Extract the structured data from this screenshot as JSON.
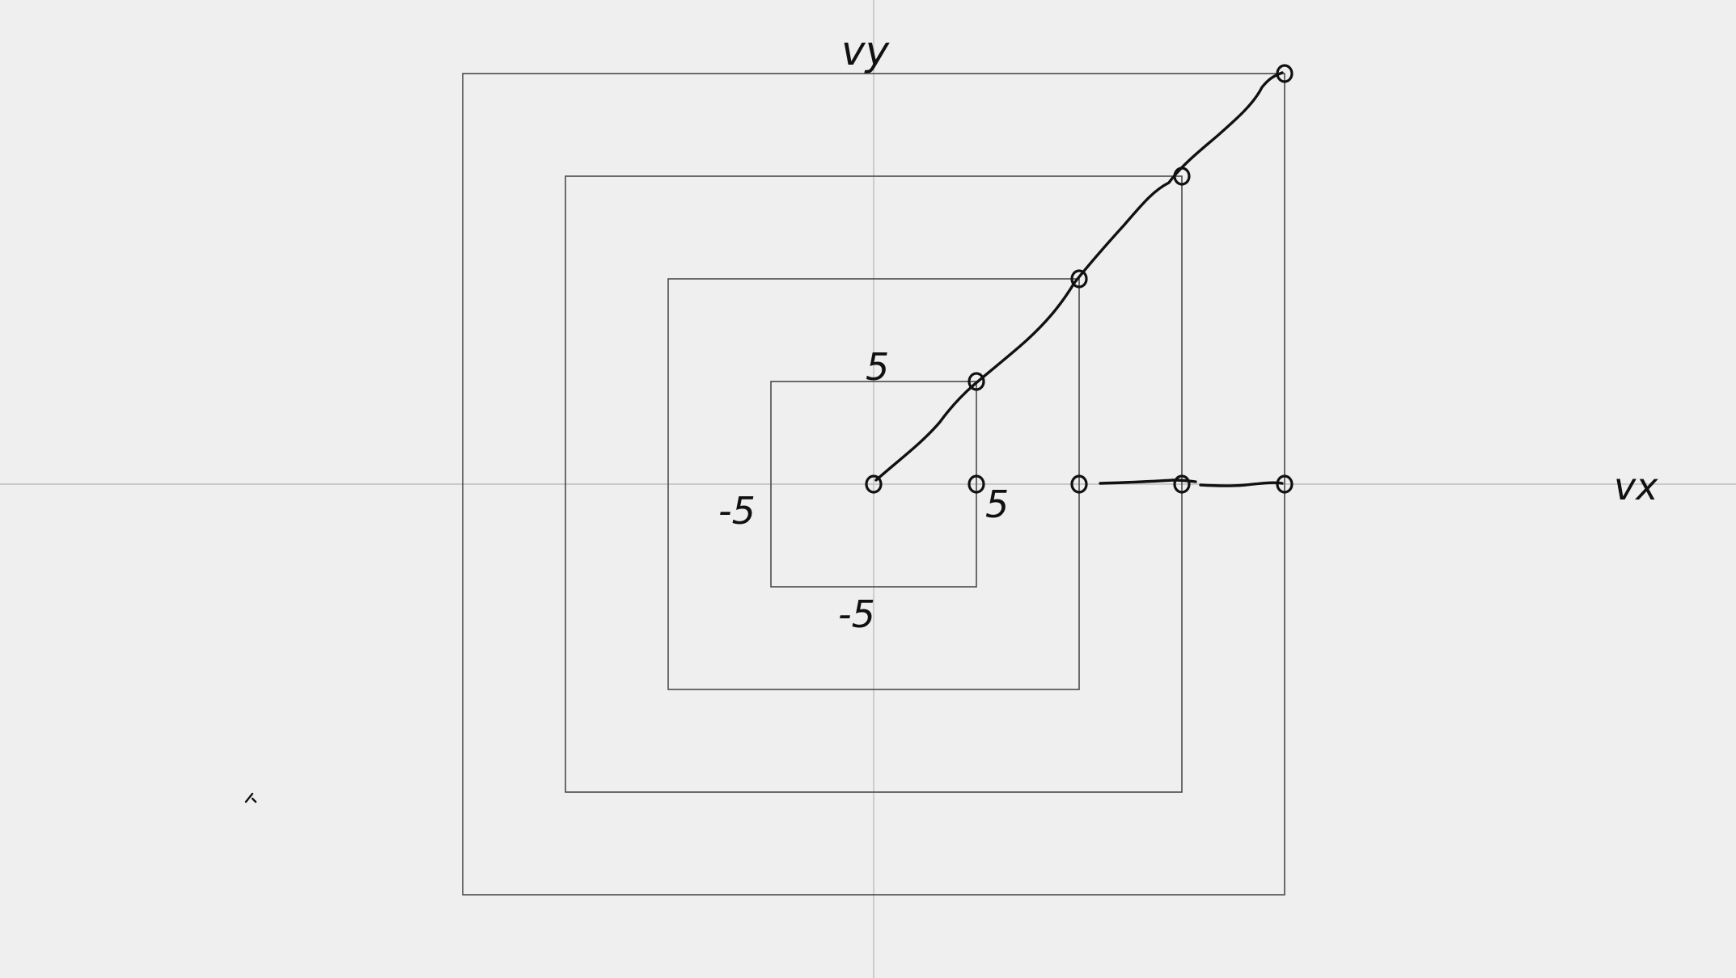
{
  "axes": {
    "x_label": "vx",
    "y_label": "vy"
  },
  "tick_labels": {
    "top": "5",
    "right": "5",
    "left": "-5",
    "bottom": "-5"
  },
  "squares": [
    {
      "half_width": 5
    },
    {
      "half_width": 10
    },
    {
      "half_width": 15
    },
    {
      "half_width": 20
    }
  ],
  "diagonal_points": [
    {
      "x": 0,
      "y": 0
    },
    {
      "x": 5,
      "y": 5
    },
    {
      "x": 10,
      "y": 10
    },
    {
      "x": 15,
      "y": 15
    },
    {
      "x": 20,
      "y": 20
    }
  ],
  "horizontal_points": [
    {
      "x": 5,
      "y": 0
    },
    {
      "x": 10,
      "y": 0
    },
    {
      "x": 15,
      "y": 0
    },
    {
      "x": 20,
      "y": 0
    }
  ],
  "colors": {
    "background": "#efefef",
    "axis": "#bdbdbd",
    "square": "#4a4a4a",
    "ink": "#111111"
  }
}
